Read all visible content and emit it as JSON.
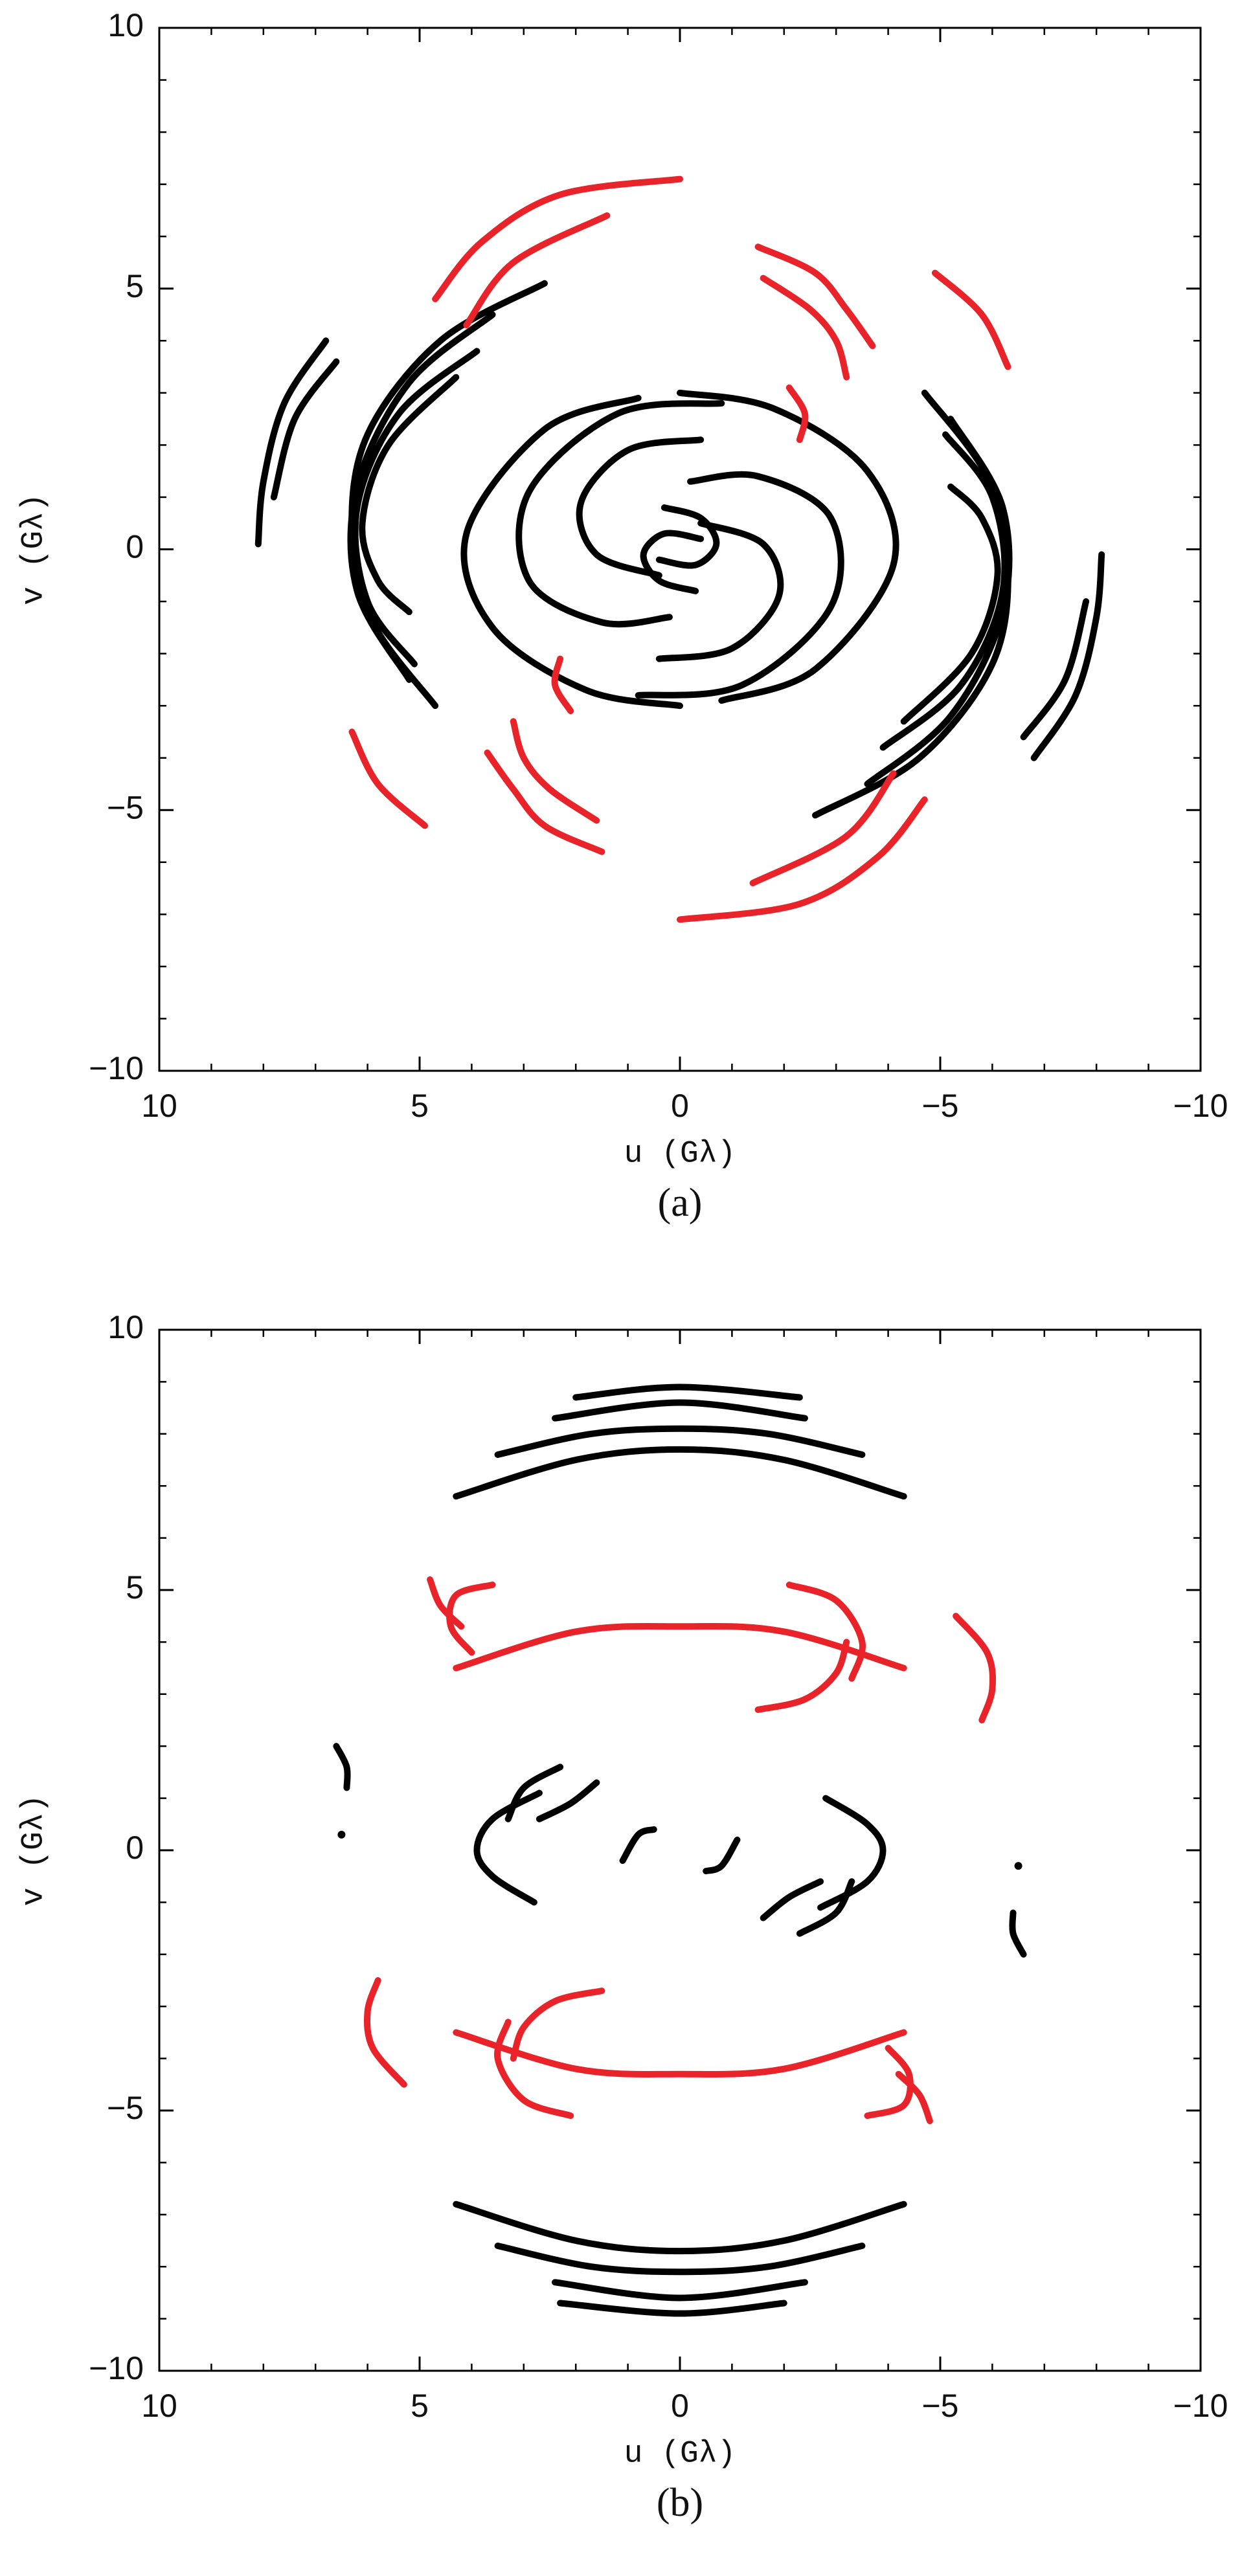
{
  "chart_data": [
    {
      "type": "line",
      "caption": "(a)",
      "xlabel": "u (Gλ)",
      "ylabel": "v (Gλ)",
      "xlim": [
        10,
        -10
      ],
      "ylim": [
        -10,
        10
      ],
      "xticks": [
        10,
        5,
        0,
        {
          "value": -5,
          "label": "−5"
        },
        {
          "value": -10,
          "label": "−10"
        }
      ],
      "yticks": [
        {
          "value": -10,
          "label": "−10"
        },
        {
          "value": -5,
          "label": "−5"
        },
        0,
        5,
        10
      ],
      "xminor": [
        9,
        8,
        7,
        6,
        4,
        3,
        2,
        1,
        -1,
        -2,
        -3,
        -4,
        -6,
        -7,
        -8,
        -9
      ],
      "yminor": [
        -9,
        -8,
        -7,
        -6,
        -4,
        -3,
        -2,
        -1,
        1,
        2,
        3,
        4,
        6,
        7,
        8,
        9
      ],
      "series": [
        {
          "color": "#000000",
          "x": [
            2.6,
            4.6,
            6.0,
            6.3,
            5.9,
            4.7
          ],
          "values": [
            5.1,
            4.0,
            2.2,
            0.3,
            -1.4,
            -3.0
          ]
        },
        {
          "color": "#000000",
          "x": [
            -2.6,
            -4.6,
            -6.0,
            -6.3,
            -5.9,
            -4.7
          ],
          "values": [
            -5.1,
            -4.0,
            -2.2,
            -0.3,
            1.4,
            3.0
          ]
        },
        {
          "color": "#000000",
          "x": [
            3.6,
            5.2,
            6.2,
            6.2,
            5.2
          ],
          "values": [
            4.5,
            3.2,
            1.2,
            -0.8,
            -2.5
          ]
        },
        {
          "color": "#000000",
          "x": [
            -3.6,
            -5.2,
            -6.2,
            -6.2,
            -5.2
          ],
          "values": [
            -4.5,
            -3.2,
            -1.2,
            0.8,
            2.5
          ]
        },
        {
          "color": "#000000",
          "x": [
            3.9,
            5.4,
            6.2,
            6.0,
            5.1
          ],
          "values": [
            3.8,
            2.6,
            0.8,
            -1.0,
            -2.2
          ]
        },
        {
          "color": "#000000",
          "x": [
            -3.9,
            -5.4,
            -6.2,
            -6.0,
            -5.1
          ],
          "values": [
            -3.8,
            -2.6,
            -0.8,
            1.0,
            2.2
          ]
        },
        {
          "color": "#000000",
          "x": [
            4.3,
            5.6,
            6.1,
            5.8,
            5.2
          ],
          "values": [
            3.3,
            2.0,
            0.5,
            -0.6,
            -1.2
          ]
        },
        {
          "color": "#000000",
          "x": [
            -4.3,
            -5.6,
            -6.1,
            -5.8,
            -5.2
          ],
          "values": [
            -3.3,
            -2.0,
            -0.5,
            0.6,
            1.2
          ]
        },
        {
          "color": "#000000",
          "x": [
            6.8,
            7.6,
            8.0,
            8.1
          ],
          "values": [
            4.0,
            2.8,
            1.3,
            0.1
          ]
        },
        {
          "color": "#000000",
          "x": [
            -6.8,
            -7.6,
            -8.0,
            -8.1
          ],
          "values": [
            -4.0,
            -2.8,
            -1.3,
            -0.1
          ]
        },
        {
          "color": "#000000",
          "x": [
            6.6,
            7.4,
            7.8
          ],
          "values": [
            3.6,
            2.5,
            1.0
          ]
        },
        {
          "color": "#000000",
          "x": [
            -6.6,
            -7.4,
            -7.8
          ],
          "values": [
            -3.6,
            -2.5,
            -1.0
          ]
        },
        {
          "color": "#000000",
          "x": [
            0.8,
            2.6,
            4.1,
            3.6,
            1.8,
            0.0
          ],
          "values": [
            2.9,
            2.3,
            0.3,
            -1.5,
            -2.7,
            -3.0
          ]
        },
        {
          "color": "#000000",
          "x": [
            -0.8,
            -2.6,
            -4.1,
            -3.6,
            -1.8,
            0.0
          ],
          "values": [
            -2.9,
            -2.3,
            -0.3,
            1.5,
            2.7,
            3.0
          ]
        },
        {
          "color": "#000000",
          "x": [
            -0.8,
            1.2,
            2.9,
            2.9,
            1.5,
            0.2
          ],
          "values": [
            2.8,
            2.6,
            1.1,
            -0.6,
            -1.4,
            -1.3
          ]
        },
        {
          "color": "#000000",
          "x": [
            0.8,
            -1.2,
            -2.9,
            -2.9,
            -1.5,
            -0.2
          ],
          "values": [
            -2.8,
            -2.6,
            -1.1,
            0.6,
            1.4,
            1.3
          ]
        },
        {
          "color": "#000000",
          "x": [
            -0.4,
            1.0,
            1.9,
            1.6,
            0.4
          ],
          "values": [
            2.1,
            1.9,
            0.9,
            -0.1,
            -0.5
          ]
        },
        {
          "color": "#000000",
          "x": [
            0.4,
            -1.0,
            -1.9,
            -1.6,
            -0.4
          ],
          "values": [
            -2.1,
            -1.9,
            -0.9,
            0.1,
            0.5
          ]
        },
        {
          "color": "#000000",
          "x": [
            0.3,
            -0.4,
            -0.7,
            -0.3,
            0.4
          ],
          "values": [
            0.8,
            0.6,
            0.1,
            -0.3,
            -0.2
          ]
        },
        {
          "color": "#000000",
          "x": [
            -0.3,
            0.4,
            0.7,
            0.3,
            -0.4
          ],
          "values": [
            -0.8,
            -0.6,
            -0.1,
            0.3,
            0.2
          ]
        },
        {
          "color": "#e8242a",
          "x": [
            4.7,
            3.8,
            2.3,
            0.0
          ],
          "values": [
            4.8,
            5.9,
            6.8,
            7.1
          ]
        },
        {
          "color": "#e8242a",
          "x": [
            -4.7,
            -3.8,
            -2.3,
            0.0
          ],
          "values": [
            -4.8,
            -5.9,
            -6.8,
            -7.1
          ]
        },
        {
          "color": "#e8242a",
          "x": [
            4.1,
            3.2,
            1.4
          ],
          "values": [
            4.3,
            5.5,
            6.4
          ]
        },
        {
          "color": "#e8242a",
          "x": [
            -4.1,
            -3.2,
            -1.4
          ],
          "values": [
            -4.3,
            -5.5,
            -6.4
          ]
        },
        {
          "color": "#e8242a",
          "x": [
            -1.5,
            -2.6,
            -3.2,
            -3.7
          ],
          "values": [
            5.8,
            5.3,
            4.6,
            3.9
          ]
        },
        {
          "color": "#e8242a",
          "x": [
            1.5,
            2.6,
            3.2,
            3.7
          ],
          "values": [
            -5.8,
            -5.3,
            -4.6,
            -3.9
          ]
        },
        {
          "color": "#e8242a",
          "x": [
            -1.6,
            -2.5,
            -3.0,
            -3.2
          ],
          "values": [
            5.2,
            4.6,
            4.0,
            3.3
          ]
        },
        {
          "color": "#e8242a",
          "x": [
            1.6,
            2.5,
            3.0,
            3.2
          ],
          "values": [
            -5.2,
            -4.6,
            -4.0,
            -3.3
          ]
        },
        {
          "color": "#e8242a",
          "x": [
            -4.9,
            -5.8,
            -6.3
          ],
          "values": [
            5.3,
            4.5,
            3.5
          ]
        },
        {
          "color": "#e8242a",
          "x": [
            4.9,
            5.8,
            6.3
          ],
          "values": [
            -5.3,
            -4.5,
            -3.5
          ]
        },
        {
          "color": "#e8242a",
          "x": [
            -2.1,
            -2.4,
            -2.3
          ],
          "values": [
            3.1,
            2.6,
            2.1
          ]
        },
        {
          "color": "#e8242a",
          "x": [
            2.1,
            2.4,
            2.3
          ],
          "values": [
            -3.1,
            -2.6,
            -2.1
          ]
        }
      ]
    },
    {
      "type": "line",
      "caption": "(b)",
      "xlabel": "u (Gλ)",
      "ylabel": "v (Gλ)",
      "xlim": [
        10,
        -10
      ],
      "ylim": [
        -10,
        10
      ],
      "xticks": [
        10,
        5,
        0,
        {
          "value": -5,
          "label": "−5"
        },
        {
          "value": -10,
          "label": "−10"
        }
      ],
      "yticks": [
        {
          "value": -10,
          "label": "−10"
        },
        {
          "value": -5,
          "label": "−5"
        },
        0,
        5,
        10
      ],
      "xminor": [
        9,
        8,
        7,
        6,
        4,
        3,
        2,
        1,
        -1,
        -2,
        -3,
        -4,
        -6,
        -7,
        -8,
        -9
      ],
      "yminor": [
        -9,
        -8,
        -7,
        -6,
        -4,
        -3,
        -2,
        -1,
        1,
        2,
        3,
        4,
        6,
        7,
        8,
        9
      ],
      "series": [
        {
          "color": "#000000",
          "x": [
            4.3,
            2.0,
            0.0,
            -2.0,
            -4.3
          ],
          "values": [
            6.8,
            7.5,
            7.7,
            7.5,
            6.8
          ]
        },
        {
          "color": "#000000",
          "x": [
            -4.3,
            -2.0,
            0.0,
            2.0,
            4.3
          ],
          "values": [
            -6.8,
            -7.5,
            -7.7,
            -7.5,
            -6.8
          ]
        },
        {
          "color": "#000000",
          "x": [
            3.5,
            1.7,
            0.0,
            -1.7,
            -3.5
          ],
          "values": [
            7.6,
            8.0,
            8.1,
            8.0,
            7.6
          ]
        },
        {
          "color": "#000000",
          "x": [
            -3.5,
            -1.7,
            0.0,
            1.7,
            3.5
          ],
          "values": [
            -7.6,
            -8.0,
            -8.1,
            -8.0,
            -7.6
          ]
        },
        {
          "color": "#000000",
          "x": [
            2.4,
            0.0,
            -2.4
          ],
          "values": [
            8.3,
            8.6,
            8.3
          ]
        },
        {
          "color": "#000000",
          "x": [
            -2.4,
            0.0,
            2.4
          ],
          "values": [
            -8.3,
            -8.6,
            -8.3
          ]
        },
        {
          "color": "#000000",
          "x": [
            2.0,
            0.0,
            -2.3
          ],
          "values": [
            8.7,
            8.9,
            8.7
          ]
        },
        {
          "color": "#000000",
          "x": [
            -2.0,
            0.0,
            2.3
          ],
          "values": [
            -8.7,
            -8.9,
            -8.7
          ]
        },
        {
          "color": "#000000",
          "x": [
            2.7,
            3.6,
            3.9,
            3.6,
            2.8
          ],
          "values": [
            1.1,
            0.6,
            0.0,
            -0.5,
            -1.0
          ]
        },
        {
          "color": "#000000",
          "x": [
            -2.7,
            -3.6,
            -3.9,
            -3.6,
            -2.8
          ],
          "values": [
            -1.1,
            -0.6,
            0.0,
            0.5,
            1.0
          ]
        },
        {
          "color": "#000000",
          "x": [
            2.3,
            3.0,
            3.3
          ],
          "values": [
            1.6,
            1.2,
            0.6
          ]
        },
        {
          "color": "#000000",
          "x": [
            -2.3,
            -3.0,
            -3.3
          ],
          "values": [
            -1.6,
            -1.2,
            -0.6
          ]
        },
        {
          "color": "#000000",
          "x": [
            1.6,
            2.1,
            2.7
          ],
          "values": [
            1.3,
            0.9,
            0.6
          ]
        },
        {
          "color": "#000000",
          "x": [
            -1.6,
            -2.1,
            -2.7
          ],
          "values": [
            -1.3,
            -0.9,
            -0.6
          ]
        },
        {
          "color": "#000000",
          "x": [
            0.5,
            0.8,
            1.1
          ],
          "values": [
            0.4,
            0.3,
            -0.2
          ]
        },
        {
          "color": "#000000",
          "x": [
            -0.5,
            -0.8,
            -1.1
          ],
          "values": [
            -0.4,
            -0.3,
            0.2
          ]
        },
        {
          "color": "#000000",
          "x": [
            6.6,
            6.4,
            6.4
          ],
          "values": [
            2.0,
            1.6,
            1.2
          ]
        },
        {
          "color": "#000000",
          "x": [
            -6.6,
            -6.4,
            -6.4
          ],
          "values": [
            -2.0,
            -1.6,
            -1.2
          ]
        },
        {
          "color": "#000000",
          "x": [
            6.5
          ],
          "values": [
            0.3
          ]
        },
        {
          "color": "#000000",
          "x": [
            -6.5
          ],
          "values": [
            -0.3
          ]
        },
        {
          "color": "#e8242a",
          "x": [
            4.3,
            2.0,
            0.0,
            -2.0,
            -4.3
          ],
          "values": [
            3.5,
            4.2,
            4.3,
            4.2,
            3.5
          ]
        },
        {
          "color": "#e8242a",
          "x": [
            -4.3,
            -2.0,
            0.0,
            2.0,
            4.3
          ],
          "values": [
            -3.5,
            -4.2,
            -4.3,
            -4.2,
            -3.5
          ]
        },
        {
          "color": "#e8242a",
          "x": [
            4.8,
            4.6,
            4.2
          ],
          "values": [
            5.2,
            4.7,
            4.3
          ]
        },
        {
          "color": "#e8242a",
          "x": [
            -4.8,
            -4.6,
            -4.2
          ],
          "values": [
            -5.2,
            -4.7,
            -4.3
          ]
        },
        {
          "color": "#e8242a",
          "x": [
            3.6,
            4.3,
            4.4,
            4.0
          ],
          "values": [
            5.1,
            4.9,
            4.3,
            3.8
          ]
        },
        {
          "color": "#e8242a",
          "x": [
            -3.6,
            -4.3,
            -4.4,
            -4.0
          ],
          "values": [
            -5.1,
            -4.9,
            -4.3,
            -3.8
          ]
        },
        {
          "color": "#e8242a",
          "x": [
            -2.1,
            -3.0,
            -3.5,
            -3.3
          ],
          "values": [
            5.1,
            4.8,
            4.0,
            3.3
          ]
        },
        {
          "color": "#e8242a",
          "x": [
            2.1,
            3.0,
            3.5,
            3.3
          ],
          "values": [
            -5.1,
            -4.8,
            -4.0,
            -3.3
          ]
        },
        {
          "color": "#e8242a",
          "x": [
            -1.5,
            -2.4,
            -3.0,
            -3.2
          ],
          "values": [
            2.7,
            2.9,
            3.4,
            4.0
          ]
        },
        {
          "color": "#e8242a",
          "x": [
            1.5,
            2.4,
            3.0,
            3.2
          ],
          "values": [
            -2.7,
            -2.9,
            -3.4,
            -4.0
          ]
        },
        {
          "color": "#e8242a",
          "x": [
            -5.3,
            -5.9,
            -6.0,
            -5.8
          ],
          "values": [
            4.5,
            3.8,
            3.1,
            2.5
          ]
        },
        {
          "color": "#e8242a",
          "x": [
            5.3,
            5.9,
            6.0,
            5.8
          ],
          "values": [
            -4.5,
            -3.8,
            -3.1,
            -2.5
          ]
        }
      ]
    }
  ]
}
